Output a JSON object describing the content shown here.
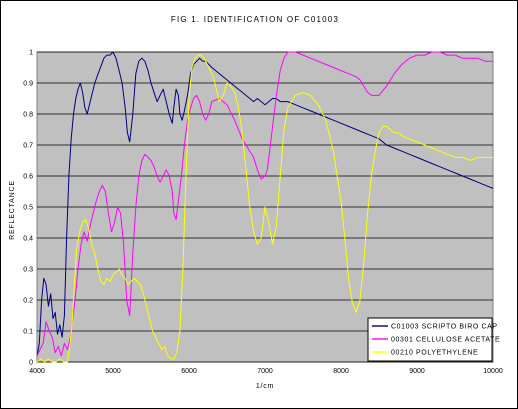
{
  "chart_data": {
    "type": "line",
    "title": "FIG 1. IDENTIFICATION OF C01003",
    "xlabel": "1/cm",
    "ylabel": "REFLECTANCE",
    "xlim": [
      4000,
      10000
    ],
    "ylim": [
      0,
      1
    ],
    "xticks": [
      "4000",
      "5000",
      "6000",
      "7000",
      "8000",
      "9000",
      "10000"
    ],
    "yticks": [
      "0",
      "0.1",
      "0.2",
      "0.3",
      "0.4",
      "0.5",
      "0.6",
      "0.7",
      "0.8",
      "0.9",
      "1"
    ],
    "grid": "horizontal",
    "plot_background": "#c0c0c0",
    "legend_position": "bottom-right",
    "series": [
      {
        "name": "C01003 SCRIPTO BIRO CAP",
        "color": "#000080",
        "x": [
          4000,
          4030,
          4060,
          4090,
          4120,
          4150,
          4180,
          4210,
          4240,
          4270,
          4300,
          4330,
          4360,
          4390,
          4420,
          4450,
          4480,
          4510,
          4540,
          4570,
          4600,
          4630,
          4660,
          4700,
          4730,
          4760,
          4790,
          4820,
          4850,
          4880,
          4920,
          4960,
          5000,
          5040,
          5080,
          5120,
          5160,
          5190,
          5220,
          5260,
          5300,
          5340,
          5380,
          5420,
          5460,
          5500,
          5540,
          5580,
          5620,
          5660,
          5700,
          5740,
          5780,
          5800,
          5830,
          5860,
          5880,
          5910,
          5940,
          5980,
          6020,
          6060,
          6100,
          6140,
          6180,
          6220,
          6260,
          6300,
          6350,
          6400,
          6450,
          6500,
          6550,
          6600,
          6650,
          6700,
          6750,
          6800,
          6850,
          6900,
          6950,
          7000,
          7050,
          7100,
          7150,
          7200,
          7300,
          7400,
          7500,
          7600,
          7700,
          7800,
          7900,
          8000,
          8100,
          8200,
          8300,
          8400,
          8500,
          8600,
          8700,
          8800,
          8900,
          9000,
          9100,
          9200,
          9300,
          9400,
          9500,
          9600,
          9700,
          9800,
          9900,
          10000
        ],
        "y": [
          0.02,
          0.06,
          0.2,
          0.27,
          0.25,
          0.18,
          0.22,
          0.14,
          0.16,
          0.09,
          0.12,
          0.08,
          0.15,
          0.4,
          0.6,
          0.72,
          0.8,
          0.85,
          0.88,
          0.9,
          0.87,
          0.82,
          0.8,
          0.84,
          0.87,
          0.9,
          0.92,
          0.94,
          0.96,
          0.98,
          0.99,
          0.99,
          1.0,
          0.98,
          0.94,
          0.9,
          0.82,
          0.74,
          0.71,
          0.8,
          0.93,
          0.97,
          0.98,
          0.97,
          0.94,
          0.9,
          0.87,
          0.84,
          0.86,
          0.88,
          0.84,
          0.8,
          0.77,
          0.82,
          0.88,
          0.86,
          0.8,
          0.78,
          0.81,
          0.86,
          0.93,
          0.96,
          0.97,
          0.98,
          0.97,
          0.97,
          0.96,
          0.95,
          0.94,
          0.93,
          0.92,
          0.91,
          0.9,
          0.89,
          0.88,
          0.87,
          0.86,
          0.85,
          0.84,
          0.85,
          0.84,
          0.83,
          0.84,
          0.85,
          0.85,
          0.84,
          0.84,
          0.83,
          0.82,
          0.81,
          0.8,
          0.79,
          0.78,
          0.77,
          0.76,
          0.75,
          0.74,
          0.73,
          0.72,
          0.7,
          0.69,
          0.68,
          0.67,
          0.66,
          0.65,
          0.64,
          0.63,
          0.62,
          0.61,
          0.6,
          0.59,
          0.58,
          0.57,
          0.56
        ]
      },
      {
        "name": "00301 CELLULOSE ACETATE",
        "color": "#ff00ff",
        "x": [
          4000,
          4040,
          4080,
          4120,
          4160,
          4200,
          4240,
          4280,
          4320,
          4360,
          4400,
          4440,
          4460,
          4500,
          4540,
          4580,
          4620,
          4660,
          4700,
          4740,
          4780,
          4820,
          4860,
          4900,
          4940,
          4980,
          5020,
          5060,
          5100,
          5140,
          5180,
          5220,
          5260,
          5300,
          5340,
          5380,
          5420,
          5460,
          5500,
          5540,
          5580,
          5620,
          5660,
          5700,
          5740,
          5780,
          5800,
          5830,
          5860,
          5900,
          5940,
          5980,
          6020,
          6060,
          6100,
          6140,
          6180,
          6220,
          6260,
          6300,
          6400,
          6500,
          6600,
          6700,
          6800,
          6850,
          6900,
          6950,
          7000,
          7030,
          7060,
          7100,
          7150,
          7200,
          7250,
          7300,
          7400,
          7500,
          7600,
          7700,
          7800,
          7900,
          8000,
          8100,
          8200,
          8250,
          8300,
          8350,
          8400,
          8500,
          8600,
          8700,
          8800,
          8900,
          9000,
          9100,
          9200,
          9300,
          9400,
          9500,
          9600,
          9700,
          9800,
          9900,
          10000
        ],
        "y": [
          0.02,
          0.04,
          0.06,
          0.13,
          0.1,
          0.08,
          0.03,
          0.05,
          0.02,
          0.06,
          0.04,
          0.08,
          0.12,
          0.2,
          0.3,
          0.38,
          0.42,
          0.39,
          0.44,
          0.48,
          0.52,
          0.55,
          0.57,
          0.55,
          0.48,
          0.42,
          0.45,
          0.5,
          0.48,
          0.38,
          0.2,
          0.15,
          0.35,
          0.5,
          0.6,
          0.65,
          0.67,
          0.66,
          0.65,
          0.63,
          0.6,
          0.58,
          0.6,
          0.62,
          0.6,
          0.55,
          0.48,
          0.46,
          0.52,
          0.6,
          0.7,
          0.78,
          0.82,
          0.85,
          0.86,
          0.84,
          0.8,
          0.78,
          0.8,
          0.84,
          0.85,
          0.83,
          0.78,
          0.72,
          0.68,
          0.66,
          0.62,
          0.59,
          0.6,
          0.62,
          0.68,
          0.76,
          0.86,
          0.94,
          0.98,
          1.0,
          1.0,
          0.99,
          0.98,
          0.97,
          0.96,
          0.95,
          0.94,
          0.93,
          0.92,
          0.91,
          0.89,
          0.87,
          0.86,
          0.86,
          0.89,
          0.93,
          0.96,
          0.98,
          0.99,
          0.99,
          1.0,
          1.0,
          0.99,
          0.99,
          0.98,
          0.98,
          0.98,
          0.97,
          0.97
        ]
      },
      {
        "name": "00210 POLYETHYLENE",
        "color": "#ffff00",
        "x": [
          4000,
          4050,
          4100,
          4150,
          4200,
          4250,
          4300,
          4350,
          4400,
          4430,
          4460,
          4490,
          4520,
          4560,
          4600,
          4640,
          4680,
          4720,
          4760,
          4800,
          4840,
          4880,
          4920,
          4960,
          5000,
          5040,
          5080,
          5120,
          5160,
          5200,
          5240,
          5280,
          5320,
          5360,
          5400,
          5440,
          5480,
          5520,
          5560,
          5600,
          5640,
          5680,
          5720,
          5760,
          5800,
          5840,
          5880,
          5920,
          5960,
          6000,
          6040,
          6080,
          6120,
          6160,
          6200,
          6240,
          6280,
          6320,
          6360,
          6400,
          6450,
          6500,
          6550,
          6600,
          6650,
          6700,
          6750,
          6800,
          6850,
          6900,
          6950,
          7000,
          7050,
          7100,
          7150,
          7200,
          7250,
          7300,
          7400,
          7500,
          7600,
          7700,
          7800,
          7900,
          8000,
          8050,
          8100,
          8150,
          8200,
          8250,
          8300,
          8350,
          8400,
          8450,
          8500,
          8550,
          8600,
          8650,
          8700,
          8750,
          8800,
          8900,
          9000,
          9100,
          9200,
          9300,
          9400,
          9500,
          9600,
          9700,
          9800,
          9900,
          10000
        ],
        "y": [
          0.0,
          0.01,
          0.0,
          0.01,
          0.0,
          0.0,
          0.01,
          0.0,
          0.0,
          0.05,
          0.12,
          0.24,
          0.36,
          0.42,
          0.45,
          0.46,
          0.43,
          0.38,
          0.35,
          0.3,
          0.26,
          0.25,
          0.27,
          0.26,
          0.28,
          0.29,
          0.3,
          0.28,
          0.27,
          0.25,
          0.26,
          0.27,
          0.26,
          0.25,
          0.22,
          0.18,
          0.14,
          0.1,
          0.08,
          0.06,
          0.04,
          0.05,
          0.02,
          0.01,
          0.01,
          0.03,
          0.1,
          0.3,
          0.6,
          0.85,
          0.95,
          0.98,
          0.99,
          0.99,
          0.98,
          0.96,
          0.94,
          0.92,
          0.88,
          0.84,
          0.86,
          0.9,
          0.89,
          0.87,
          0.82,
          0.74,
          0.62,
          0.5,
          0.42,
          0.38,
          0.4,
          0.5,
          0.45,
          0.38,
          0.44,
          0.6,
          0.75,
          0.82,
          0.86,
          0.87,
          0.86,
          0.83,
          0.78,
          0.68,
          0.52,
          0.4,
          0.27,
          0.19,
          0.16,
          0.2,
          0.32,
          0.48,
          0.6,
          0.68,
          0.74,
          0.76,
          0.76,
          0.75,
          0.74,
          0.74,
          0.73,
          0.72,
          0.71,
          0.7,
          0.69,
          0.68,
          0.67,
          0.66,
          0.66,
          0.65,
          0.66,
          0.66,
          0.66
        ]
      }
    ]
  }
}
